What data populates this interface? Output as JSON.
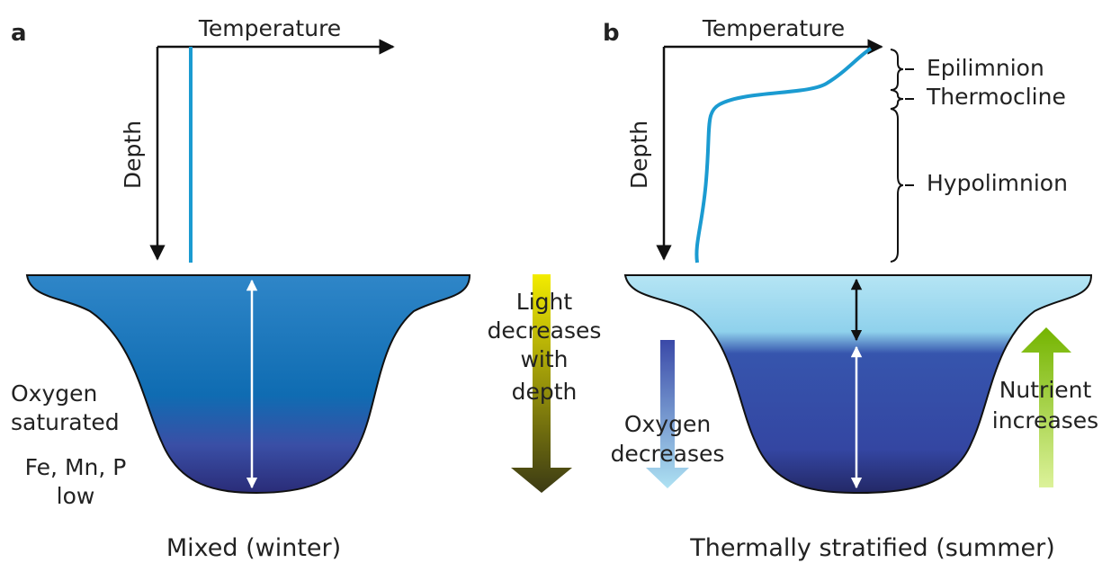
{
  "panel_a": {
    "label": "a",
    "x_axis": "Temperature",
    "y_axis": "Depth",
    "notes": [
      [
        "Oxygen",
        "saturated"
      ],
      [
        "Fe, Mn, P",
        "low"
      ]
    ],
    "caption": "Mixed (winter)"
  },
  "light": [
    "Light",
    "decreases",
    "with",
    "depth"
  ],
  "panel_b": {
    "label": "b",
    "x_axis": "Temperature",
    "y_axis": "Depth",
    "layers": [
      "Epilimnion",
      "Thermocline",
      "Hypolimnion"
    ],
    "oxygen": [
      "Oxygen",
      "decreases"
    ],
    "nutrient": [
      "Nutrient",
      "increases"
    ],
    "caption": "Thermally stratified (summer)"
  }
}
